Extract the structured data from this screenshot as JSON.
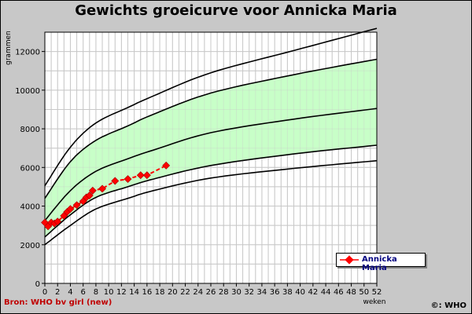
{
  "window": {
    "title": "Gewichts groeicurve voor Annicka Maria",
    "source": "Bron: WHO bv girl (new)",
    "copyright": "©: WHO"
  },
  "colors": {
    "background": "#c8c8c8",
    "plot_bg": "#ffffff",
    "band": "#c8ffc8",
    "grid": "#c8c8c8",
    "curve": "#000000",
    "series": "#ff0000",
    "legend_text": "#00007f",
    "source_text": "#c00000"
  },
  "chart_data": {
    "type": "line",
    "title": "Gewichts groeicurve voor Annicka Maria",
    "xlabel": "weken",
    "ylabel": "grammen",
    "xlim": [
      0,
      52
    ],
    "ylim": [
      0,
      13000
    ],
    "x_ticks": [
      0,
      2,
      4,
      6,
      8,
      10,
      12,
      14,
      16,
      18,
      20,
      22,
      24,
      26,
      28,
      30,
      32,
      34,
      36,
      38,
      40,
      42,
      44,
      46,
      48,
      50,
      52
    ],
    "x_tick_labels": [
      "0",
      "2",
      "4",
      "6",
      "8",
      "10",
      "12",
      "14",
      "16",
      "18",
      "20",
      "22",
      "24",
      "26",
      "28",
      "30",
      "32",
      "34",
      "36",
      "38",
      "40",
      "42",
      "44",
      "46",
      "48",
      "50",
      "52"
    ],
    "y_ticks": [
      0,
      2000,
      4000,
      6000,
      8000,
      10000,
      12000
    ],
    "y_tick_labels": [
      "0",
      "2000",
      "4000",
      "6000",
      "8000",
      "10000",
      "12000"
    ],
    "grid": true,
    "legend_position": "bottom-right",
    "reference_x": [
      0,
      4,
      8,
      13,
      17,
      26,
      39,
      52
    ],
    "reference_curves": [
      {
        "values": [
          2000,
          3000,
          3850,
          4400,
          4800,
          5450,
          5950,
          6350
        ]
      },
      {
        "values": [
          2400,
          3550,
          4450,
          5000,
          5400,
          6100,
          6700,
          7150
        ]
      },
      {
        "values": [
          3250,
          4800,
          5800,
          6450,
          6900,
          7800,
          8500,
          9050
        ]
      },
      {
        "values": [
          4400,
          6300,
          7400,
          8150,
          8750,
          9850,
          10800,
          11600
        ]
      },
      {
        "values": [
          5050,
          7050,
          8300,
          9100,
          9700,
          10900,
          12050,
          13200
        ]
      }
    ],
    "band": {
      "lower_curve": 1,
      "upper_curve": 3
    },
    "series": [
      {
        "name": "Annicka Maria",
        "x": [
          0,
          0.5,
          1,
          1.5,
          2,
          3,
          3.5,
          4,
          5,
          6,
          6.5,
          7,
          7.5,
          9,
          11,
          13,
          15,
          16,
          19
        ],
        "y": [
          3150,
          2950,
          3150,
          3100,
          3200,
          3500,
          3700,
          3850,
          4050,
          4250,
          4450,
          4550,
          4800,
          4900,
          5300,
          5400,
          5600,
          5600,
          6100
        ]
      }
    ]
  }
}
